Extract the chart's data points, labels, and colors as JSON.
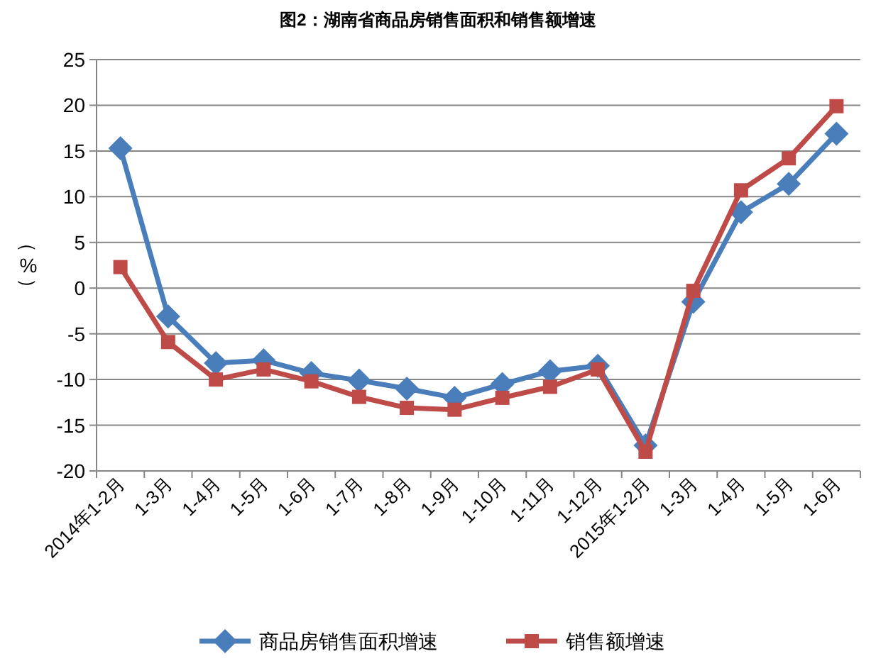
{
  "chart_data": {
    "type": "line",
    "title": "图2：湖南省商品房销售面积和销售额增速",
    "ylabel": "（%）",
    "categories": [
      "2014年1-2月",
      "1-3月",
      "1-4月",
      "1-5月",
      "1-6月",
      "1-7月",
      "1-8月",
      "1-9月",
      "1-10月",
      "1-11月",
      "1-12月",
      "2015年1-2月",
      "1-3月",
      "1-4月",
      "1-5月",
      "1-6月"
    ],
    "series": [
      {
        "name": "商品房销售面积增速",
        "color": "#4a7ebb",
        "marker": "diamond",
        "values": [
          15.3,
          -3.1,
          -8.2,
          -7.9,
          -9.3,
          -10.1,
          -11.0,
          -12.0,
          -10.5,
          -9.1,
          -8.5,
          -17.2,
          -1.5,
          8.3,
          11.4,
          16.9
        ]
      },
      {
        "name": "销售额增速",
        "color": "#be4b48",
        "marker": "square",
        "values": [
          2.3,
          -5.9,
          -10.0,
          -8.9,
          -10.2,
          -11.9,
          -13.1,
          -13.3,
          -12.0,
          -10.8,
          -8.9,
          -17.9,
          -0.3,
          10.7,
          14.2,
          19.9
        ]
      }
    ],
    "ylim": [
      -20,
      25
    ],
    "yticks": [
      -20,
      -15,
      -10,
      -5,
      0,
      5,
      10,
      15,
      20,
      25
    ],
    "grid": "y",
    "legend": "bottom"
  }
}
